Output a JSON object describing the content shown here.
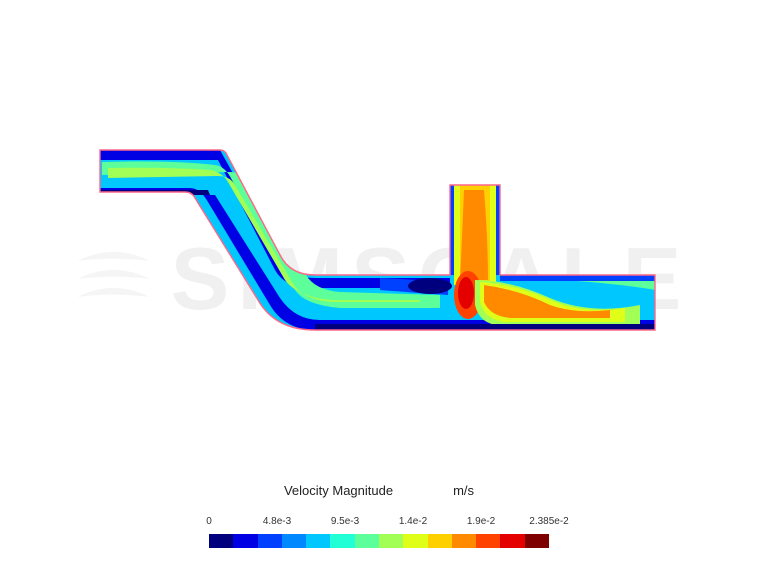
{
  "watermark": {
    "text": "SIMSCALE",
    "text_color": "#f0f0f0",
    "fontsize": 88
  },
  "legend": {
    "title": "Velocity Magnitude",
    "unit": "m/s",
    "title_fontsize": 13,
    "tick_fontsize": 10,
    "ticks": [
      "0",
      "4.8e-3",
      "9.5e-3",
      "1.4e-2",
      "1.9e-2",
      "2.385e-2"
    ],
    "tick_positions_pct": [
      0,
      20,
      40,
      60,
      80,
      100
    ],
    "colors": [
      "#00007f",
      "#0000e5",
      "#0040ff",
      "#0088ff",
      "#00c8ff",
      "#22ffd6",
      "#5cff9a",
      "#a2ff56",
      "#e0ff18",
      "#ffd000",
      "#ff8a00",
      "#ff4200",
      "#e50000",
      "#7f0000"
    ]
  },
  "simulation": {
    "type": "cfd-velocity-contour",
    "outline_color": "#ff6688",
    "outline_width": 1.4,
    "background_color": "#ffffff",
    "palette": {
      "darkblue": "#00007f",
      "blue": "#0040ff",
      "lightblue": "#00c8ff",
      "cyan": "#22ffd6",
      "green": "#5cff9a",
      "yellowgreen": "#a2ff56",
      "yellow": "#e0ff18",
      "orange": "#ff8a00",
      "red": "#e50000"
    }
  }
}
